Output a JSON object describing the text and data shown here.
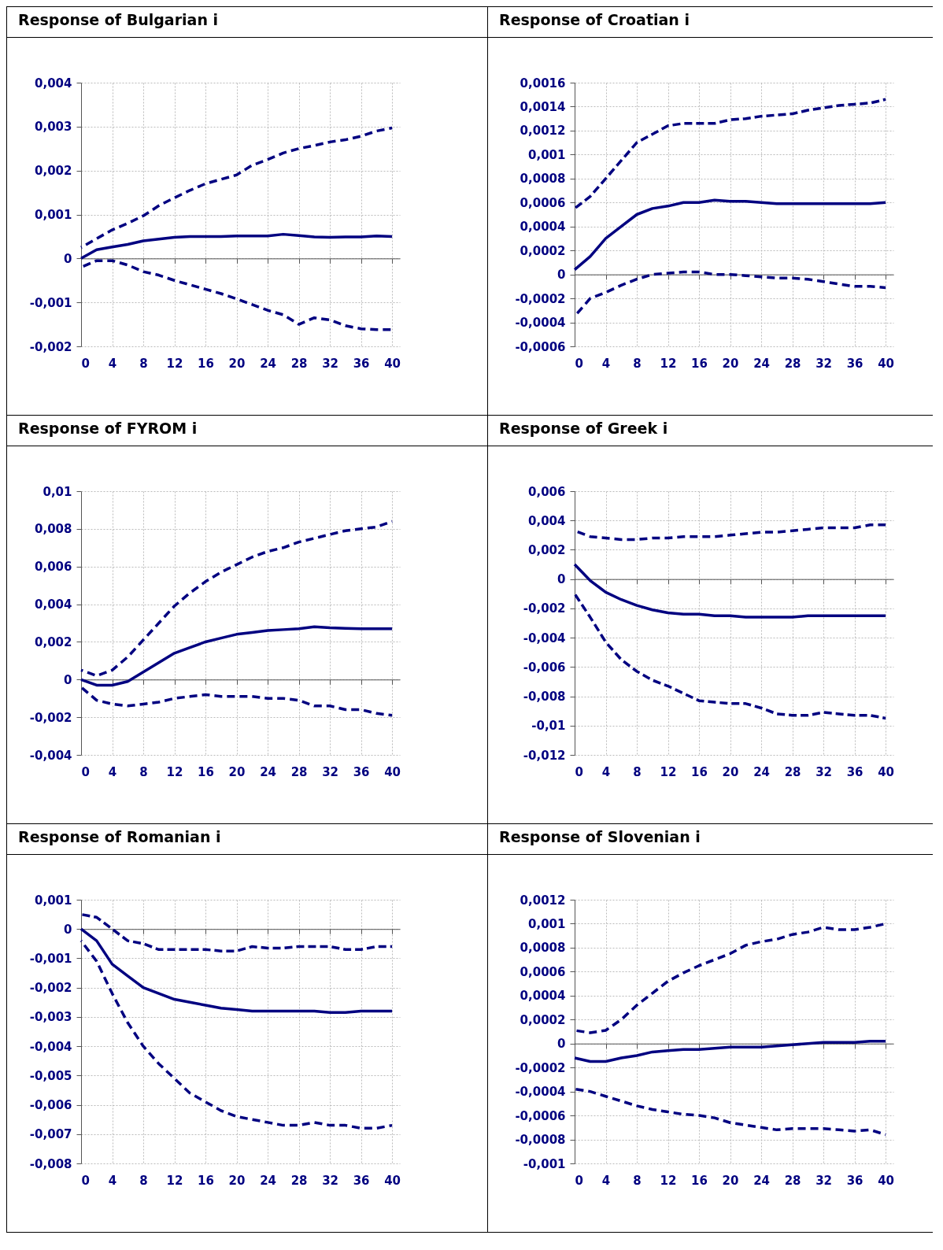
{
  "chart_data": [
    {
      "type": "line",
      "title": "Response of Bulgarian i",
      "x": [
        0,
        2,
        4,
        6,
        8,
        10,
        12,
        14,
        16,
        18,
        20,
        22,
        24,
        26,
        28,
        30,
        32,
        34,
        36,
        38,
        40
      ],
      "xlim": [
        0,
        41
      ],
      "xticks": [
        0,
        4,
        8,
        12,
        16,
        20,
        24,
        28,
        32,
        36,
        40
      ],
      "ylim": [
        -0.002,
        0.004
      ],
      "yticks": [
        {
          "value": -0.002,
          "label": "-0,002"
        },
        {
          "value": -0.001,
          "label": "-0,001"
        },
        {
          "value": 0,
          "label": "0"
        },
        {
          "value": 0.001,
          "label": "0,001"
        },
        {
          "value": 0.002,
          "label": "0,002"
        },
        {
          "value": 0.003,
          "label": "0,003"
        },
        {
          "value": 0.004,
          "label": "0,004"
        }
      ],
      "grid": true,
      "series": [
        {
          "color": "#000080",
          "line_style": "solid",
          "values": [
            0,
            0.0002,
            0.00026,
            0.00032,
            0.0004,
            0.00044,
            0.00048,
            0.0005,
            0.0005,
            0.0005,
            0.00051,
            0.00051,
            0.00051,
            0.00055,
            0.00052,
            0.00049,
            0.00048,
            0.00049,
            0.00049,
            0.00051,
            0.0005
          ]
        },
        {
          "color": "#000080",
          "line_style": "dashed",
          "values": [
            0.00025,
            0.00045,
            0.00065,
            0.0008,
            0.00097,
            0.0012,
            0.00138,
            0.00155,
            0.0017,
            0.0018,
            0.0019,
            0.00212,
            0.00225,
            0.0024,
            0.0025,
            0.00257,
            0.00265,
            0.0027,
            0.00278,
            0.0029,
            0.00297
          ]
        },
        {
          "color": "#000080",
          "line_style": "dashed",
          "values": [
            -0.0002,
            -5e-05,
            -5e-05,
            -0.00015,
            -0.0003,
            -0.00038,
            -0.0005,
            -0.0006,
            -0.0007,
            -0.0008,
            -0.00092,
            -0.00105,
            -0.00118,
            -0.00128,
            -0.0015,
            -0.00135,
            -0.0014,
            -0.00153,
            -0.0016,
            -0.00162,
            -0.00162
          ]
        }
      ]
    },
    {
      "type": "line",
      "title": "Response of Croatian i",
      "x": [
        0,
        2,
        4,
        6,
        8,
        10,
        12,
        14,
        16,
        18,
        20,
        22,
        24,
        26,
        28,
        30,
        32,
        34,
        36,
        38,
        40
      ],
      "xlim": [
        0,
        41
      ],
      "xticks": [
        0,
        4,
        8,
        12,
        16,
        20,
        24,
        28,
        32,
        36,
        40
      ],
      "ylim": [
        -0.0006,
        0.0016
      ],
      "yticks": [
        {
          "value": -0.0006,
          "label": "-0,0006"
        },
        {
          "value": -0.0004,
          "label": "-0,0004"
        },
        {
          "value": -0.0002,
          "label": "-0,0002"
        },
        {
          "value": 0,
          "label": "0"
        },
        {
          "value": 0.0002,
          "label": "0,0002"
        },
        {
          "value": 0.0004,
          "label": "0,0004"
        },
        {
          "value": 0.0006,
          "label": "0,0006"
        },
        {
          "value": 0.0008,
          "label": "0,0008"
        },
        {
          "value": 0.001,
          "label": "0,001"
        },
        {
          "value": 0.0012,
          "label": "0,0012"
        },
        {
          "value": 0.0014,
          "label": "0,0014"
        },
        {
          "value": 0.0016,
          "label": "0,0016"
        }
      ],
      "grid": true,
      "series": [
        {
          "color": "#000080",
          "line_style": "solid",
          "values": [
            4e-05,
            0.00015,
            0.0003,
            0.0004,
            0.0005,
            0.00055,
            0.00057,
            0.0006,
            0.0006,
            0.00062,
            0.00061,
            0.00061,
            0.0006,
            0.00059,
            0.00059,
            0.00059,
            0.00059,
            0.00059,
            0.00059,
            0.00059,
            0.0006
          ]
        },
        {
          "color": "#000080",
          "line_style": "dashed",
          "values": [
            0.00055,
            0.00065,
            0.0008,
            0.00095,
            0.0011,
            0.00117,
            0.00124,
            0.00126,
            0.00126,
            0.00126,
            0.00129,
            0.0013,
            0.00132,
            0.00133,
            0.00134,
            0.00137,
            0.00139,
            0.00141,
            0.00142,
            0.00143,
            0.00146
          ]
        },
        {
          "color": "#000080",
          "line_style": "dashed",
          "values": [
            -0.00035,
            -0.0002,
            -0.00015,
            -9e-05,
            -4e-05,
            0,
            1e-05,
            2e-05,
            2e-05,
            0,
            0,
            -1e-05,
            -2e-05,
            -3e-05,
            -3e-05,
            -4e-05,
            -6e-05,
            -8e-05,
            -0.0001,
            -0.0001,
            -0.00011
          ]
        }
      ]
    },
    {
      "type": "line",
      "title": "Response of FYROM i",
      "x": [
        0,
        2,
        4,
        6,
        8,
        10,
        12,
        14,
        16,
        18,
        20,
        22,
        24,
        26,
        28,
        30,
        32,
        34,
        36,
        38,
        40
      ],
      "xlim": [
        0,
        41
      ],
      "xticks": [
        0,
        4,
        8,
        12,
        16,
        20,
        24,
        28,
        32,
        36,
        40
      ],
      "ylim": [
        -0.004,
        0.01
      ],
      "yticks": [
        {
          "value": -0.004,
          "label": "-0,004"
        },
        {
          "value": -0.002,
          "label": "-0,002"
        },
        {
          "value": 0,
          "label": "0"
        },
        {
          "value": 0.002,
          "label": "0,002"
        },
        {
          "value": 0.004,
          "label": "0,004"
        },
        {
          "value": 0.006,
          "label": "0,006"
        },
        {
          "value": 0.008,
          "label": "0,008"
        },
        {
          "value": 0.01,
          "label": "0,01"
        }
      ],
      "grid": true,
      "series": [
        {
          "color": "#000080",
          "line_style": "solid",
          "values": [
            0,
            -0.0003,
            -0.0003,
            -0.0001,
            0.0004,
            0.0009,
            0.0014,
            0.0017,
            0.002,
            0.0022,
            0.0024,
            0.0025,
            0.0026,
            0.00265,
            0.0027,
            0.0028,
            0.00275,
            0.00272,
            0.0027,
            0.0027,
            0.0027
          ]
        },
        {
          "color": "#000080",
          "line_style": "dashed",
          "values": [
            0.0005,
            0.0002,
            0.0005,
            0.0012,
            0.0021,
            0.003,
            0.0039,
            0.0046,
            0.0052,
            0.0057,
            0.0061,
            0.0065,
            0.0068,
            0.007,
            0.0073,
            0.0075,
            0.0077,
            0.0079,
            0.008,
            0.0081,
            0.0084
          ]
        },
        {
          "color": "#000080",
          "line_style": "dashed",
          "values": [
            -0.0004,
            -0.0011,
            -0.0013,
            -0.0014,
            -0.0013,
            -0.0012,
            -0.001,
            -0.0009,
            -0.0008,
            -0.0009,
            -0.0009,
            -0.0009,
            -0.001,
            -0.001,
            -0.0011,
            -0.0014,
            -0.0014,
            -0.0016,
            -0.0016,
            -0.0018,
            -0.0019
          ]
        }
      ]
    },
    {
      "type": "line",
      "title": "Response of Greek i",
      "x": [
        0,
        2,
        4,
        6,
        8,
        10,
        12,
        14,
        16,
        18,
        20,
        22,
        24,
        26,
        28,
        30,
        32,
        34,
        36,
        38,
        40
      ],
      "xlim": [
        0,
        41
      ],
      "xticks": [
        0,
        4,
        8,
        12,
        16,
        20,
        24,
        28,
        32,
        36,
        40
      ],
      "ylim": [
        -0.012,
        0.006
      ],
      "yticks": [
        {
          "value": -0.012,
          "label": "-0,012"
        },
        {
          "value": -0.01,
          "label": "-0,01"
        },
        {
          "value": -0.008,
          "label": "-0,008"
        },
        {
          "value": -0.006,
          "label": "-0,006"
        },
        {
          "value": -0.004,
          "label": "-0,004"
        },
        {
          "value": -0.002,
          "label": "-0,002"
        },
        {
          "value": 0,
          "label": "0"
        },
        {
          "value": 0.002,
          "label": "0,002"
        },
        {
          "value": 0.004,
          "label": "0,004"
        },
        {
          "value": 0.006,
          "label": "0,006"
        }
      ],
      "grid": true,
      "series": [
        {
          "color": "#000080",
          "line_style": "solid",
          "values": [
            0.001,
            -0.0001,
            -0.0009,
            -0.0014,
            -0.0018,
            -0.0021,
            -0.0023,
            -0.0024,
            -0.0024,
            -0.0025,
            -0.0025,
            -0.0026,
            -0.0026,
            -0.0026,
            -0.0026,
            -0.0025,
            -0.0025,
            -0.0025,
            -0.0025,
            -0.0025,
            -0.0025
          ]
        },
        {
          "color": "#000080",
          "line_style": "dashed",
          "values": [
            0.0033,
            0.0029,
            0.0028,
            0.0027,
            0.0027,
            0.0028,
            0.0028,
            0.0029,
            0.0029,
            0.0029,
            0.003,
            0.0031,
            0.0032,
            0.0032,
            0.0033,
            0.0034,
            0.0035,
            0.0035,
            0.0035,
            0.0037,
            0.0037
          ]
        },
        {
          "color": "#000080",
          "line_style": "dashed",
          "values": [
            -0.001,
            -0.0026,
            -0.0043,
            -0.0055,
            -0.0063,
            -0.0069,
            -0.0073,
            -0.0078,
            -0.0083,
            -0.0084,
            -0.0085,
            -0.0085,
            -0.0088,
            -0.0092,
            -0.0093,
            -0.0093,
            -0.0091,
            -0.0092,
            -0.0093,
            -0.0093,
            -0.0095
          ]
        }
      ]
    },
    {
      "type": "line",
      "title": "Response of Romanian i",
      "x": [
        0,
        2,
        4,
        6,
        8,
        10,
        12,
        14,
        16,
        18,
        20,
        22,
        24,
        26,
        28,
        30,
        32,
        34,
        36,
        38,
        40
      ],
      "xlim": [
        0,
        41
      ],
      "xticks": [
        0,
        4,
        8,
        12,
        16,
        20,
        24,
        28,
        32,
        36,
        40
      ],
      "ylim": [
        -0.008,
        0.001
      ],
      "yticks": [
        {
          "value": -0.008,
          "label": "-0,008"
        },
        {
          "value": -0.007,
          "label": "-0,007"
        },
        {
          "value": -0.006,
          "label": "-0,006"
        },
        {
          "value": -0.005,
          "label": "-0,005"
        },
        {
          "value": -0.004,
          "label": "-0,004"
        },
        {
          "value": -0.003,
          "label": "-0,003"
        },
        {
          "value": -0.002,
          "label": "-0,002"
        },
        {
          "value": -0.001,
          "label": "-0,001"
        },
        {
          "value": 0,
          "label": "0"
        },
        {
          "value": 0.001,
          "label": "0,001"
        }
      ],
      "grid": true,
      "series": [
        {
          "color": "#000080",
          "line_style": "solid",
          "values": [
            0,
            -0.0004,
            -0.0012,
            -0.0016,
            -0.002,
            -0.0022,
            -0.0024,
            -0.0025,
            -0.0026,
            -0.0027,
            -0.00275,
            -0.0028,
            -0.0028,
            -0.0028,
            -0.0028,
            -0.0028,
            -0.00285,
            -0.00285,
            -0.0028,
            -0.0028,
            -0.0028
          ]
        },
        {
          "color": "#000080",
          "line_style": "dashed",
          "values": [
            0.0005,
            0.0004,
            0,
            -0.0004,
            -0.0005,
            -0.0007,
            -0.0007,
            -0.0007,
            -0.0007,
            -0.00075,
            -0.00075,
            -0.0006,
            -0.00065,
            -0.00065,
            -0.0006,
            -0.0006,
            -0.0006,
            -0.0007,
            -0.0007,
            -0.0006,
            -0.0006
          ]
        },
        {
          "color": "#000080",
          "line_style": "dashed",
          "values": [
            -0.0004,
            -0.0011,
            -0.0022,
            -0.0032,
            -0.004,
            -0.0046,
            -0.0051,
            -0.0056,
            -0.0059,
            -0.0062,
            -0.0064,
            -0.0065,
            -0.0066,
            -0.0067,
            -0.0067,
            -0.0066,
            -0.0067,
            -0.0067,
            -0.0068,
            -0.0068,
            -0.0067
          ]
        }
      ]
    },
    {
      "type": "line",
      "title": "Response of Slovenian i",
      "x": [
        0,
        2,
        4,
        6,
        8,
        10,
        12,
        14,
        16,
        18,
        20,
        22,
        24,
        26,
        28,
        30,
        32,
        34,
        36,
        38,
        40
      ],
      "xlim": [
        0,
        41
      ],
      "xticks": [
        0,
        4,
        8,
        12,
        16,
        20,
        24,
        28,
        32,
        36,
        40
      ],
      "ylim": [
        -0.001,
        0.0012
      ],
      "yticks": [
        {
          "value": -0.001,
          "label": "-0,001"
        },
        {
          "value": -0.0008,
          "label": "-0,0008"
        },
        {
          "value": -0.0006,
          "label": "-0,0006"
        },
        {
          "value": -0.0004,
          "label": "-0,0004"
        },
        {
          "value": -0.0002,
          "label": "-0,0002"
        },
        {
          "value": 0,
          "label": "0"
        },
        {
          "value": 0.0002,
          "label": "0,0002"
        },
        {
          "value": 0.0004,
          "label": "0,0004"
        },
        {
          "value": 0.0006,
          "label": "0,0006"
        },
        {
          "value": 0.0008,
          "label": "0,0008"
        },
        {
          "value": 0.001,
          "label": "0,001"
        },
        {
          "value": 0.0012,
          "label": "0,0012"
        }
      ],
      "grid": true,
      "series": [
        {
          "color": "#000080",
          "line_style": "solid",
          "values": [
            -0.00012,
            -0.00015,
            -0.00015,
            -0.00012,
            -0.0001,
            -7e-05,
            -6e-05,
            -5e-05,
            -5e-05,
            -4e-05,
            -3e-05,
            -3e-05,
            -3e-05,
            -2e-05,
            -1e-05,
            0,
            1e-05,
            1e-05,
            1e-05,
            2e-05,
            2e-05
          ]
        },
        {
          "color": "#000080",
          "line_style": "dashed",
          "values": [
            0.00011,
            9e-05,
            0.00011,
            0.0002,
            0.00032,
            0.00042,
            0.00052,
            0.00059,
            0.00065,
            0.0007,
            0.00075,
            0.00082,
            0.00085,
            0.00087,
            0.00091,
            0.00093,
            0.00097,
            0.00095,
            0.00095,
            0.00097,
            0.001
          ]
        },
        {
          "color": "#000080",
          "line_style": "dashed",
          "values": [
            -0.00038,
            -0.0004,
            -0.00044,
            -0.00048,
            -0.00052,
            -0.00055,
            -0.00057,
            -0.00059,
            -0.0006,
            -0.00062,
            -0.00066,
            -0.00068,
            -0.0007,
            -0.00072,
            -0.00071,
            -0.00071,
            -0.00071,
            -0.00072,
            -0.00073,
            -0.00072,
            -0.00076
          ]
        }
      ]
    }
  ]
}
